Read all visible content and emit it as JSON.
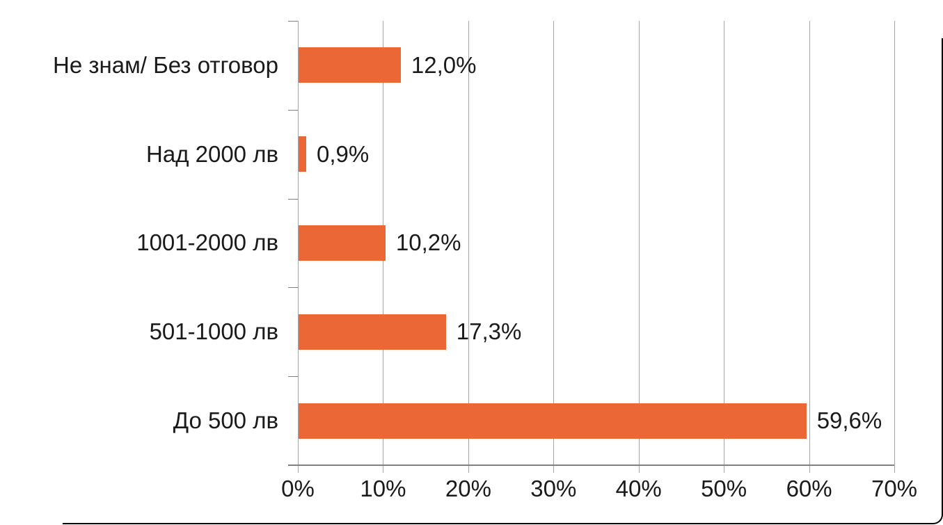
{
  "chart_data": {
    "type": "bar",
    "orientation": "horizontal",
    "title": "",
    "categories": [
      "Не знам/ Без отговор",
      "Над 2000 лв",
      "1001-2000 лв",
      "501-1000 лв",
      "До 500 лв"
    ],
    "values": [
      12.0,
      0.9,
      10.2,
      17.3,
      59.6
    ],
    "value_labels": [
      "12,0%",
      "0,9%",
      "10,2%",
      "17,3%",
      "59,6%"
    ],
    "xlabel": "",
    "ylabel": "",
    "x_axis": {
      "min": 0,
      "max": 70,
      "step": 10,
      "ticks": [
        "0%",
        "10%",
        "20%",
        "30%",
        "40%",
        "50%",
        "60%",
        "70%"
      ]
    },
    "grid": true,
    "legend": false,
    "colors": {
      "bar": "#EB6836",
      "gridline": "#A6A6A6",
      "axis": "#808080",
      "text": "#1A1A1A",
      "frame": "#000000"
    }
  }
}
